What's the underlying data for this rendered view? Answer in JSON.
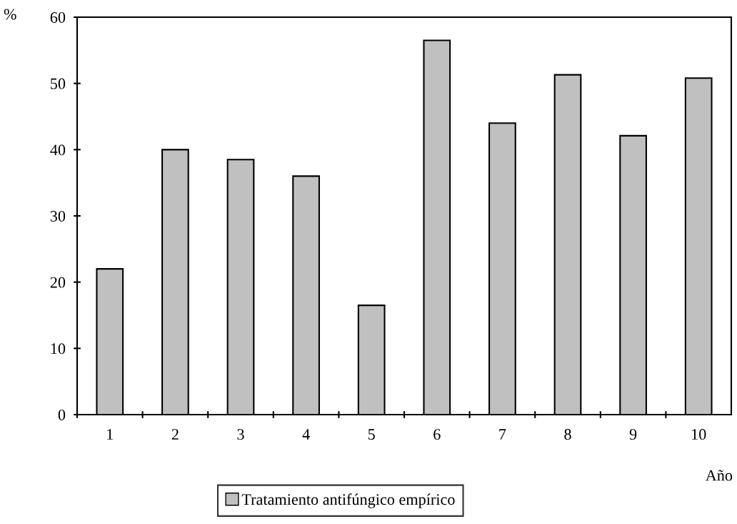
{
  "chart_data": {
    "type": "bar",
    "ylabel": "%",
    "xlabel": "Año",
    "categories": [
      "1",
      "2",
      "3",
      "4",
      "5",
      "6",
      "7",
      "8",
      "9",
      "10"
    ],
    "series": [
      {
        "name": "Tratamiento antifúngico empírico",
        "color": "#c0c0c0",
        "values": [
          22,
          40,
          38.5,
          36,
          16.5,
          56.5,
          44,
          51.3,
          42.1,
          50.8
        ]
      }
    ],
    "ylim": [
      0,
      60
    ],
    "yticks": [
      0,
      10,
      20,
      30,
      40,
      50,
      60
    ],
    "grid": false,
    "legend": "bottom"
  }
}
